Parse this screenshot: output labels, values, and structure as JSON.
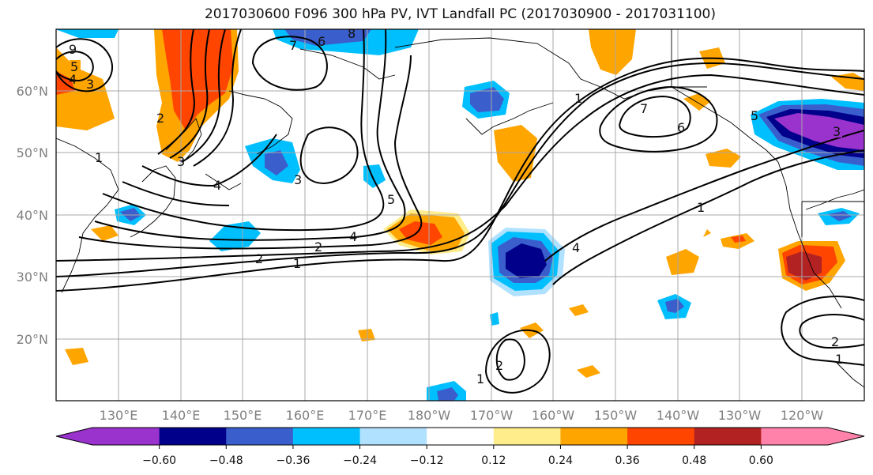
{
  "title": "2017030600 F096 300 hPa PV, IVT Landfall PC (2017030900 - 2017031100)",
  "lat_labels": [
    "60°N",
    "50°N",
    "40°N",
    "30°N",
    "20°N"
  ],
  "lon_labels": [
    "130°E",
    "140°E",
    "150°E",
    "160°E",
    "170°E",
    "180°W",
    "170°W",
    "160°W",
    "150°W",
    "140°W",
    "130°W",
    "120°W"
  ],
  "colorbar": {
    "tick_labels": [
      "−0.60",
      "−0.48",
      "−0.36",
      "−0.24",
      "−0.12",
      "0.12",
      "0.24",
      "0.36",
      "0.48",
      "0.60"
    ],
    "colors": [
      "#9a32cd",
      "#00008b",
      "#3a5fcd",
      "#00bfff",
      "#b0e2ff",
      "#ffffff",
      "#ffec8b",
      "#ffa500",
      "#ff4500",
      "#b22222",
      "#ff82ab"
    ]
  },
  "contour_labels": [
    "5",
    "4",
    "3",
    "9",
    "7",
    "6",
    "8",
    "1",
    "2",
    "3",
    "4",
    "5",
    "3",
    "4",
    "2",
    "1",
    "7",
    "6",
    "5",
    "4",
    "1",
    "3",
    "2",
    "1",
    "1",
    "2",
    "2",
    "1"
  ],
  "palette": {
    "purple": "#9a32cd",
    "navy": "#00008b",
    "blue": "#3a5fcd",
    "cyan": "#00bfff",
    "lightblue": "#b0e2ff",
    "yellow": "#ffec8b",
    "orange": "#ffa500",
    "redorange": "#ff4500",
    "darkred": "#b22222",
    "pink": "#ff82ab"
  }
}
